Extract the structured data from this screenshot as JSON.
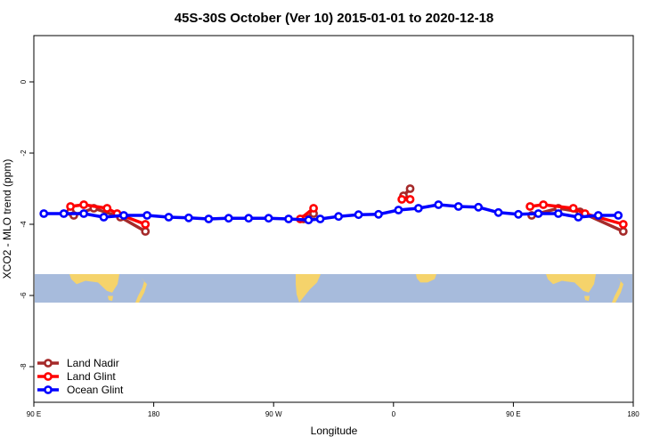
{
  "chart_data": {
    "type": "line",
    "title": "45S-30S October (Ver 10)   2015-01-01 to 2020-12-18",
    "xlabel": "Longitude",
    "ylabel": "XCO2 - MLO trend (ppm)",
    "xlim": [
      90,
      450
    ],
    "ylim": [
      -9,
      1.3
    ],
    "x_ticks": [
      {
        "value": 90,
        "label": "90 E"
      },
      {
        "value": 162,
        "label": "180"
      },
      {
        "value": 234,
        "label": "90 W"
      },
      {
        "value": 306,
        "label": "0"
      },
      {
        "value": 378,
        "label": "90 E"
      },
      {
        "value": 450,
        "label": "180"
      }
    ],
    "y_ticks": [
      {
        "value": 0,
        "label": "0"
      },
      {
        "value": -2,
        "label": "-2"
      },
      {
        "value": -4,
        "label": "-4"
      },
      {
        "value": -6,
        "label": "-6"
      },
      {
        "value": -8,
        "label": "-8"
      }
    ],
    "map_strip": {
      "ymin": -6.2,
      "ymax": -5.4,
      "ocean_color": "#a7bbdc",
      "land_color": "#f5d36b"
    },
    "legend_position": "bottom-left",
    "grid": false,
    "series": [
      {
        "name": "Land Nadir",
        "color": "#a52a2a",
        "segments": [
          {
            "x": [
              112,
              114,
              126,
              142,
              157
            ],
            "y": [
              -3.65,
              -3.75,
              -3.55,
              -3.8,
              -4.2
            ]
          },
          {
            "x": [
              252,
              258
            ],
            "y": [
              -3.85,
              -3.7
            ]
          },
          {
            "x": [
              312,
              316
            ],
            "y": [
              -3.2,
              -3.0
            ]
          },
          {
            "x": [
              389,
              405,
              418,
              444
            ],
            "y": [
              -3.75,
              -3.55,
              -3.65,
              -4.2
            ]
          }
        ]
      },
      {
        "name": "Land Glint",
        "color": "#ff0000",
        "segments": [
          {
            "x": [
              112,
              120,
              134,
              140,
              157
            ],
            "y": [
              -3.5,
              -3.45,
              -3.55,
              -3.7,
              -4.0
            ]
          },
          {
            "x": [
              250,
              258
            ],
            "y": [
              -3.85,
              -3.55
            ]
          },
          {
            "x": [
              311,
              316
            ],
            "y": [
              -3.3,
              -3.3
            ]
          },
          {
            "x": [
              388,
              396,
              414,
              421,
              444
            ],
            "y": [
              -3.5,
              -3.45,
              -3.55,
              -3.7,
              -4.0
            ]
          }
        ]
      },
      {
        "name": "Ocean Glint",
        "color": "#0000ff",
        "segments": [
          {
            "x": [
              96,
              108,
              120,
              132,
              144,
              158,
              171,
              183,
              195,
              207,
              219,
              231,
              243,
              255,
              262,
              273,
              285,
              297,
              309,
              321,
              333,
              345,
              357,
              369,
              381,
              393,
              405,
              417,
              429,
              441
            ],
            "y": [
              -3.7,
              -3.7,
              -3.7,
              -3.8,
              -3.75,
              -3.75,
              -3.8,
              -3.82,
              -3.85,
              -3.83,
              -3.83,
              -3.83,
              -3.85,
              -3.88,
              -3.85,
              -3.78,
              -3.73,
              -3.72,
              -3.6,
              -3.55,
              -3.45,
              -3.5,
              -3.52,
              -3.67,
              -3.72,
              -3.7,
              -3.7,
              -3.8,
              -3.75,
              -3.75
            ]
          }
        ]
      }
    ]
  }
}
